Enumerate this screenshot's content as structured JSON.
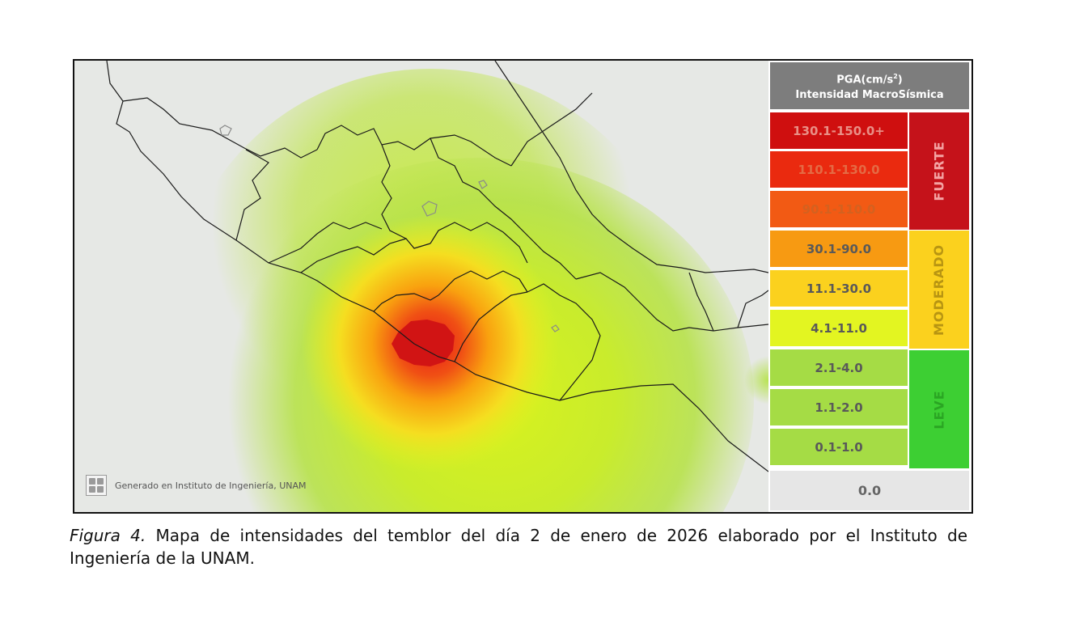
{
  "legend": {
    "title_line1": "PGA(cm/s",
    "title_sup": "2",
    "title_line1_end": ")",
    "title_line2": "Intensidad MacroSísmica",
    "rows": [
      {
        "label": "130.1-150.0+",
        "color": "#cf0f0f"
      },
      {
        "label": "110.1-130.0",
        "color": "#ea2a0f"
      },
      {
        "label": "90.1-110.0",
        "color": "#f25a14"
      },
      {
        "label": "30.1-90.0",
        "color": "#f79a12"
      },
      {
        "label": "11.1-30.0",
        "color": "#fbd11e"
      },
      {
        "label": "4.1-11.0",
        "color": "#e3f521"
      },
      {
        "label": "2.1-4.0",
        "color": "#a5dc45"
      },
      {
        "label": "1.1-2.0",
        "color": "#a5dc45"
      },
      {
        "label": "0.1-1.0",
        "color": "#a5dc45"
      }
    ],
    "groups": [
      {
        "label": "FUERTE",
        "color": "#c5121a",
        "text_color": "#f4a3a3"
      },
      {
        "label": "MODERADO",
        "color": "#fbd11e",
        "text_color": "#b89512"
      },
      {
        "label": "LEVE",
        "color": "#3dcf33",
        "text_color": "#2aa523"
      }
    ],
    "zero_label": "0.0"
  },
  "map": {
    "credit": "Generado en Instituto de Ingeniería, UNAM"
  },
  "caption": {
    "figure_label": "Figura 4.",
    "text": " Mapa de intensidades del temblor del día 2 de enero de 2026 elaborado por el Instituto de Ingeniería de la UNAM."
  }
}
